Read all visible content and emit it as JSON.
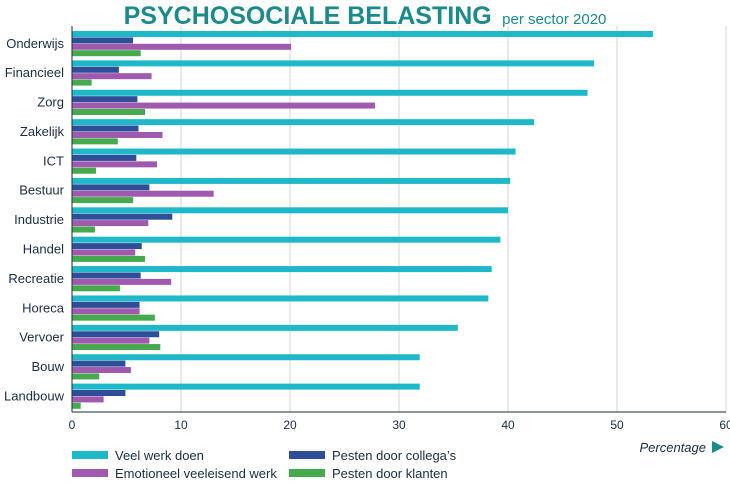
{
  "chart_data": {
    "type": "bar",
    "orientation": "horizontal",
    "title": "PSYCHOSOCIALE BELASTING",
    "subtitle": "per sector 2020",
    "xlabel": "Percentage",
    "xlim": [
      0,
      60
    ],
    "xticks": [
      "0",
      "10",
      "20",
      "30",
      "40",
      "50",
      "60"
    ],
    "grid": true,
    "legend_position": "bottom-left",
    "categories": [
      "Onderwijs",
      "Financieel",
      "Zorg",
      "Zakelijk",
      "ICT",
      "Bestuur",
      "Industrie",
      "Handel",
      "Recreatie",
      "Horeca",
      "Vervoer",
      "Bouw",
      "Landbouw"
    ],
    "series": [
      {
        "name": "Veel werk doen",
        "color": "#1fb8c9",
        "values": [
          53.3,
          47.9,
          47.3,
          42.4,
          40.7,
          40.2,
          40.0,
          39.3,
          38.5,
          38.2,
          35.4,
          31.9,
          31.9
        ]
      },
      {
        "name": "Pesten door collega's",
        "color": "#2e4f97",
        "values": [
          5.6,
          4.3,
          6.0,
          6.1,
          5.9,
          7.1,
          9.2,
          6.4,
          6.3,
          6.2,
          8.0,
          4.9,
          4.9
        ]
      },
      {
        "name": "Emotioneel veeleisend werk",
        "color": "#a05aad",
        "values": [
          20.1,
          7.3,
          27.8,
          8.3,
          7.8,
          13.0,
          7.0,
          5.8,
          9.1,
          6.2,
          7.1,
          5.4,
          2.9
        ]
      },
      {
        "name": "Pesten door klanten",
        "color": "#45aa4e",
        "values": [
          6.3,
          1.8,
          6.7,
          4.2,
          2.2,
          5.6,
          2.1,
          6.7,
          4.4,
          7.6,
          8.1,
          2.5,
          0.8
        ]
      }
    ],
    "legend_order": [
      "Veel werk doen",
      "Pesten door collega's",
      "Emotioneel veeleisend werk",
      "Pesten door klanten"
    ],
    "legend_labels": [
      "Veel werk doen",
      "Pesten door collega’s",
      "Emotioneel veeleisend werk",
      "Pesten door klanten"
    ]
  },
  "colors": {
    "title": "#1a8a8a",
    "axis_text": "#1a2e44",
    "grid": "#d4d4d4",
    "axis_line": "#1a2e44",
    "arrow": "#1a8a8a"
  }
}
